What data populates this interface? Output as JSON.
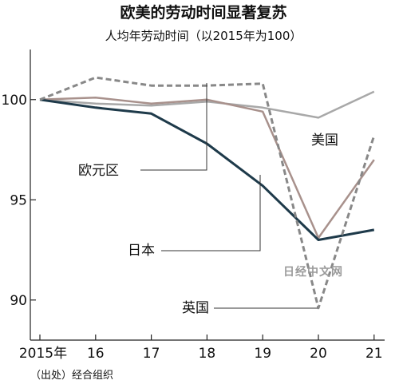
{
  "chart_data": {
    "type": "line",
    "title": "欧美的劳动时间显著复苏",
    "subtitle": "人均年劳动时间（以2015年为100）",
    "source": "（出处）经合组织",
    "watermark": "日经中文网",
    "x": [
      "2015年",
      "16",
      "17",
      "18",
      "19",
      "20",
      "21"
    ],
    "ylim": [
      88,
      102.5
    ],
    "yticks": [
      90,
      95,
      100
    ],
    "grid": false,
    "series": [
      {
        "name": "美国",
        "color": "#a8a8a8",
        "dash": false,
        "width": 2.5,
        "values": [
          100,
          99.8,
          99.7,
          99.9,
          99.6,
          99.1,
          100.4
        ]
      },
      {
        "name": "欧元区",
        "color": "#a8918c",
        "dash": false,
        "width": 2.5,
        "values": [
          100,
          100.1,
          99.8,
          100.0,
          99.4,
          93.1,
          97.0
        ]
      },
      {
        "name": "日本",
        "color": "#1e3a4a",
        "dash": false,
        "width": 3,
        "values": [
          100,
          99.6,
          99.3,
          97.8,
          95.7,
          93.0,
          93.5
        ]
      },
      {
        "name": "英国",
        "color": "#888888",
        "dash": true,
        "width": 3,
        "values": [
          100,
          101.1,
          100.7,
          100.7,
          100.8,
          89.6,
          98.2
        ]
      }
    ]
  }
}
